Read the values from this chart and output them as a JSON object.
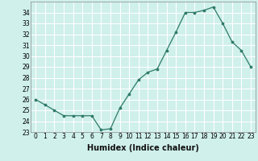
{
  "x": [
    0,
    1,
    2,
    3,
    4,
    5,
    6,
    7,
    8,
    9,
    10,
    11,
    12,
    13,
    14,
    15,
    16,
    17,
    18,
    19,
    20,
    21,
    22,
    23
  ],
  "y": [
    26,
    25.5,
    25,
    24.5,
    24.5,
    24.5,
    24.5,
    23.2,
    23.3,
    25.2,
    26.5,
    27.8,
    28.5,
    28.8,
    30.5,
    32.2,
    34.0,
    34.0,
    34.2,
    34.5,
    33.0,
    31.3,
    30.5,
    29.0
  ],
  "xlabel": "Humidex (Indice chaleur)",
  "ylim": [
    23,
    35
  ],
  "xlim": [
    -0.5,
    23.5
  ],
  "yticks": [
    23,
    24,
    25,
    26,
    27,
    28,
    29,
    30,
    31,
    32,
    33,
    34
  ],
  "xticks": [
    0,
    1,
    2,
    3,
    4,
    5,
    6,
    7,
    8,
    9,
    10,
    11,
    12,
    13,
    14,
    15,
    16,
    17,
    18,
    19,
    20,
    21,
    22,
    23
  ],
  "line_color": "#2d7a68",
  "marker_color": "#2d7a68",
  "bg_color": "#cff0eb",
  "grid_color": "#ffffff",
  "tick_label_fontsize": 5.5,
  "xlabel_fontsize": 7.0
}
